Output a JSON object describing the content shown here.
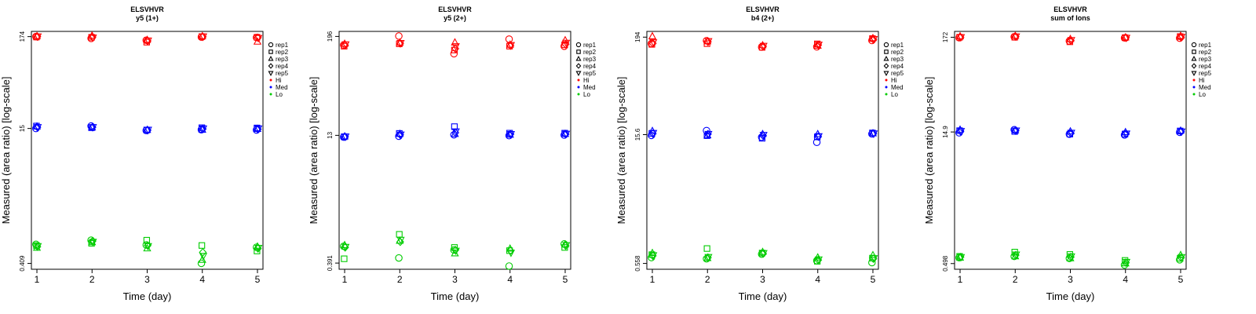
{
  "colors": {
    "Hi": "#ff0000",
    "Med": "#0000ff",
    "Lo": "#00cc00"
  },
  "chart_data": [
    {
      "type": "scatter",
      "title": "ELSVHVR",
      "subtitle": "y5 (1+)",
      "xlabel": "Time (day)",
      "ylabel": "Measured (area ratio) [log-scale]",
      "y_scale": "log",
      "x_ticks": [
        "1",
        "2",
        "3",
        "4",
        "5"
      ],
      "y_ticks": [
        "0.409",
        "15",
        "174"
      ],
      "xlim": [
        0.9,
        5.1
      ],
      "ylim": [
        0.35,
        200
      ],
      "legend_position": "right",
      "legend": [
        {
          "label": "rep1",
          "marker": "circle"
        },
        {
          "label": "rep2",
          "marker": "square"
        },
        {
          "label": "rep3",
          "marker": "triangle-up"
        },
        {
          "label": "rep4",
          "marker": "diamond"
        },
        {
          "label": "rep5",
          "marker": "triangle-down"
        },
        {
          "label": "Hi",
          "marker": "dot",
          "color": "Hi"
        },
        {
          "label": "Med",
          "marker": "dot",
          "color": "Med"
        },
        {
          "label": "Lo",
          "marker": "dot",
          "color": "Lo"
        }
      ],
      "series": [
        {
          "level": "Hi",
          "x": [
            1,
            2,
            3,
            4,
            5
          ],
          "values": {
            "rep1": [
              174,
              166,
              158,
              172,
              170
            ],
            "rep2": [
              172,
              171,
              150,
              174,
              171
            ],
            "rep3": [
              176,
              178,
              159,
              176,
              152
            ],
            "rep4": [
              174,
              172,
              155,
              173,
              169
            ],
            "rep5": [
              175,
              170,
              157,
              175,
              168
            ]
          }
        },
        {
          "level": "Med",
          "x": [
            1,
            2,
            3,
            4,
            5
          ],
          "values": {
            "rep1": [
              15,
              16,
              14.2,
              14.5,
              14.4
            ],
            "rep2": [
              16,
              15.3,
              14.4,
              15.3,
              15.2
            ],
            "rep3": [
              15.8,
              15.4,
              14.4,
              14.5,
              14.8
            ],
            "rep4": [
              15.5,
              15.5,
              14.3,
              14.8,
              14.7
            ],
            "rep5": [
              15.6,
              15.6,
              14.5,
              15,
              15
            ]
          }
        },
        {
          "level": "Lo",
          "x": [
            1,
            2,
            3,
            4,
            5
          ],
          "values": {
            "rep1": [
              0.68,
              0.76,
              0.67,
              0.41,
              0.63
            ],
            "rep2": [
              0.66,
              0.7,
              0.76,
              0.66,
              0.57
            ],
            "rep3": [
              0.62,
              0.72,
              0.61,
              0.45,
              0.64
            ],
            "rep4": [
              0.64,
              0.74,
              0.66,
              0.55,
              0.61
            ],
            "rep5": [
              0.65,
              0.73,
              0.65,
              0.5,
              0.62
            ]
          }
        }
      ]
    },
    {
      "type": "scatter",
      "title": "ELSVHVR",
      "subtitle": "y5 (2+)",
      "xlabel": "Time (day)",
      "ylabel": "Measured (area ratio) [log-scale]",
      "y_scale": "log",
      "x_ticks": [
        "1",
        "2",
        "3",
        "4",
        "5"
      ],
      "y_ticks": [
        "0.391",
        "13",
        "196"
      ],
      "xlim": [
        0.9,
        5.1
      ],
      "ylim": [
        0.33,
        225
      ],
      "legend_position": "right",
      "legend": [
        {
          "label": "rep1",
          "marker": "circle"
        },
        {
          "label": "rep2",
          "marker": "square"
        },
        {
          "label": "rep3",
          "marker": "triangle-up"
        },
        {
          "label": "rep4",
          "marker": "diamond"
        },
        {
          "label": "rep5",
          "marker": "triangle-down"
        },
        {
          "label": "Hi",
          "marker": "dot",
          "color": "Hi"
        },
        {
          "label": "Med",
          "marker": "dot",
          "color": "Med"
        },
        {
          "label": "Lo",
          "marker": "dot",
          "color": "Lo"
        }
      ],
      "series": [
        {
          "level": "Hi",
          "x": [
            1,
            2,
            3,
            4,
            5
          ],
          "values": {
            "rep1": [
              155,
              198,
              122,
              182,
              150
            ],
            "rep2": [
              150,
              160,
              135,
              150,
              156
            ],
            "rep3": [
              160,
              165,
              166,
              156,
              176
            ],
            "rep4": [
              154,
              162,
              140,
              152,
              158
            ],
            "rep5": [
              158,
              164,
              150,
              155,
              165
            ]
          }
        },
        {
          "level": "Med",
          "x": [
            1,
            2,
            3,
            4,
            5
          ],
          "values": {
            "rep1": [
              12.4,
              12.7,
              13.2,
              12.9,
              13.1
            ],
            "rep2": [
              12.5,
              13.7,
              16.5,
              13.8,
              13.8
            ],
            "rep3": [
              12.6,
              13.5,
              13.5,
              13.2,
              13.5
            ],
            "rep4": [
              12.5,
              13.2,
              14,
              13.4,
              13.4
            ],
            "rep5": [
              12.6,
              13.3,
              14.5,
              13.5,
              13.6
            ]
          }
        },
        {
          "level": "Lo",
          "x": [
            1,
            2,
            3,
            4,
            5
          ],
          "values": {
            "rep1": [
              0.62,
              0.45,
              0.56,
              0.36,
              0.66
            ],
            "rep2": [
              0.44,
              0.86,
              0.6,
              0.55,
              0.6
            ],
            "rep3": [
              0.64,
              0.72,
              0.51,
              0.58,
              0.65
            ],
            "rep4": [
              0.6,
              0.7,
              0.56,
              0.55,
              0.63
            ],
            "rep5": [
              0.61,
              0.74,
              0.55,
              0.52,
              0.64
            ]
          }
        }
      ]
    },
    {
      "type": "scatter",
      "title": "ELSVHVR",
      "subtitle": "b4 (2+)",
      "xlabel": "Time (day)",
      "ylabel": "Measured (area ratio) [log-scale]",
      "y_scale": "log",
      "x_ticks": [
        "1",
        "2",
        "3",
        "4",
        "5"
      ],
      "y_ticks": [
        "0.558",
        "15.6",
        "194"
      ],
      "xlim": [
        0.9,
        5.1
      ],
      "ylim": [
        0.48,
        225
      ],
      "legend_position": "right",
      "legend": [
        {
          "label": "rep1",
          "marker": "circle"
        },
        {
          "label": "rep2",
          "marker": "square"
        },
        {
          "label": "rep3",
          "marker": "triangle-up"
        },
        {
          "label": "rep4",
          "marker": "diamond"
        },
        {
          "label": "rep5",
          "marker": "triangle-down"
        },
        {
          "label": "Hi",
          "marker": "dot",
          "color": "Hi"
        },
        {
          "label": "Med",
          "marker": "dot",
          "color": "Med"
        },
        {
          "label": "Lo",
          "marker": "dot",
          "color": "Lo"
        }
      ],
      "series": [
        {
          "level": "Hi",
          "x": [
            1,
            2,
            3,
            4,
            5
          ],
          "values": {
            "rep1": [
              164,
              177,
              150,
              151,
              178
            ],
            "rep2": [
              161,
              164,
              149,
              163,
              187
            ],
            "rep3": [
              198,
              174,
              157,
              155,
              189
            ],
            "rep4": [
              165,
              172,
              153,
              158,
              182
            ],
            "rep5": [
              170,
              175,
              155,
              160,
              185
            ]
          }
        },
        {
          "level": "Med",
          "x": [
            1,
            2,
            3,
            4,
            5
          ],
          "values": {
            "rep1": [
              15.3,
              17.3,
              14.6,
              12.8,
              15.9
            ],
            "rep2": [
              16.1,
              15.2,
              14.2,
              14.7,
              16.3
            ],
            "rep3": [
              17.1,
              15.3,
              15.8,
              15.8,
              16.1
            ],
            "rep4": [
              16,
              15.8,
              15.2,
              14.8,
              16
            ],
            "rep5": [
              16.3,
              15.9,
              15.5,
              15,
              16.1
            ]
          }
        },
        {
          "level": "Lo",
          "x": [
            1,
            2,
            3,
            4,
            5
          ],
          "values": {
            "rep1": [
              0.65,
              0.63,
              0.71,
              0.6,
              0.57
            ],
            "rep2": [
              0.7,
              0.82,
              0.73,
              0.59,
              0.64
            ],
            "rep3": [
              0.73,
              0.64,
              0.75,
              0.65,
              0.69
            ],
            "rep4": [
              0.68,
              0.65,
              0.72,
              0.61,
              0.63
            ],
            "rep5": [
              0.69,
              0.66,
              0.73,
              0.62,
              0.64
            ]
          }
        }
      ]
    },
    {
      "type": "scatter",
      "title": "ELSVHVR",
      "subtitle": "sum of Ions",
      "xlabel": "Time (day)",
      "ylabel": "Measured (area ratio) [log-scale]",
      "y_scale": "log",
      "x_ticks": [
        "1",
        "2",
        "3",
        "4",
        "5"
      ],
      "y_ticks": [
        "0.498",
        "14.9",
        "172"
      ],
      "xlim": [
        0.9,
        5.1
      ],
      "ylim": [
        0.43,
        200
      ],
      "legend_position": "right",
      "legend": [
        {
          "label": "rep1",
          "marker": "circle"
        },
        {
          "label": "rep2",
          "marker": "square"
        },
        {
          "label": "rep3",
          "marker": "triangle-up"
        },
        {
          "label": "rep4",
          "marker": "diamond"
        },
        {
          "label": "rep5",
          "marker": "triangle-down"
        },
        {
          "label": "Hi",
          "marker": "dot",
          "color": "Hi"
        },
        {
          "label": "Med",
          "marker": "dot",
          "color": "Med"
        },
        {
          "label": "Lo",
          "marker": "dot",
          "color": "Lo"
        }
      ],
      "series": [
        {
          "level": "Hi",
          "x": [
            1,
            2,
            3,
            4,
            5
          ],
          "values": {
            "rep1": [
              170,
              174,
              156,
              169,
              168
            ],
            "rep2": [
              172,
              172,
              153,
              170,
              175
            ],
            "rep3": [
              176,
              178,
              164,
              171,
              178
            ],
            "rep4": [
              172,
              175,
              158,
              170,
              172
            ],
            "rep5": [
              173,
              176,
              160,
              170,
              174
            ]
          }
        },
        {
          "level": "Med",
          "x": [
            1,
            2,
            3,
            4,
            5
          ],
          "values": {
            "rep1": [
              14.6,
              15.8,
              14.1,
              13.8,
              14.8
            ],
            "rep2": [
              15.4,
              15.1,
              14.1,
              14.1,
              15.3
            ],
            "rep3": [
              15.8,
              15.5,
              15.1,
              14.8,
              15.4
            ],
            "rep4": [
              15.2,
              15.4,
              14.4,
              14.2,
              15
            ],
            "rep5": [
              15.3,
              15.5,
              14.6,
              14.3,
              15.1
            ]
          }
        },
        {
          "level": "Lo",
          "x": [
            1,
            2,
            3,
            4,
            5
          ],
          "values": {
            "rep1": [
              0.58,
              0.6,
              0.57,
              0.48,
              0.55
            ],
            "rep2": [
              0.6,
              0.67,
              0.63,
              0.54,
              0.57
            ],
            "rep3": [
              0.58,
              0.6,
              0.57,
              0.5,
              0.62
            ],
            "rep4": [
              0.59,
              0.62,
              0.59,
              0.51,
              0.58
            ],
            "rep5": [
              0.59,
              0.63,
              0.6,
              0.52,
              0.59
            ]
          }
        }
      ]
    }
  ]
}
